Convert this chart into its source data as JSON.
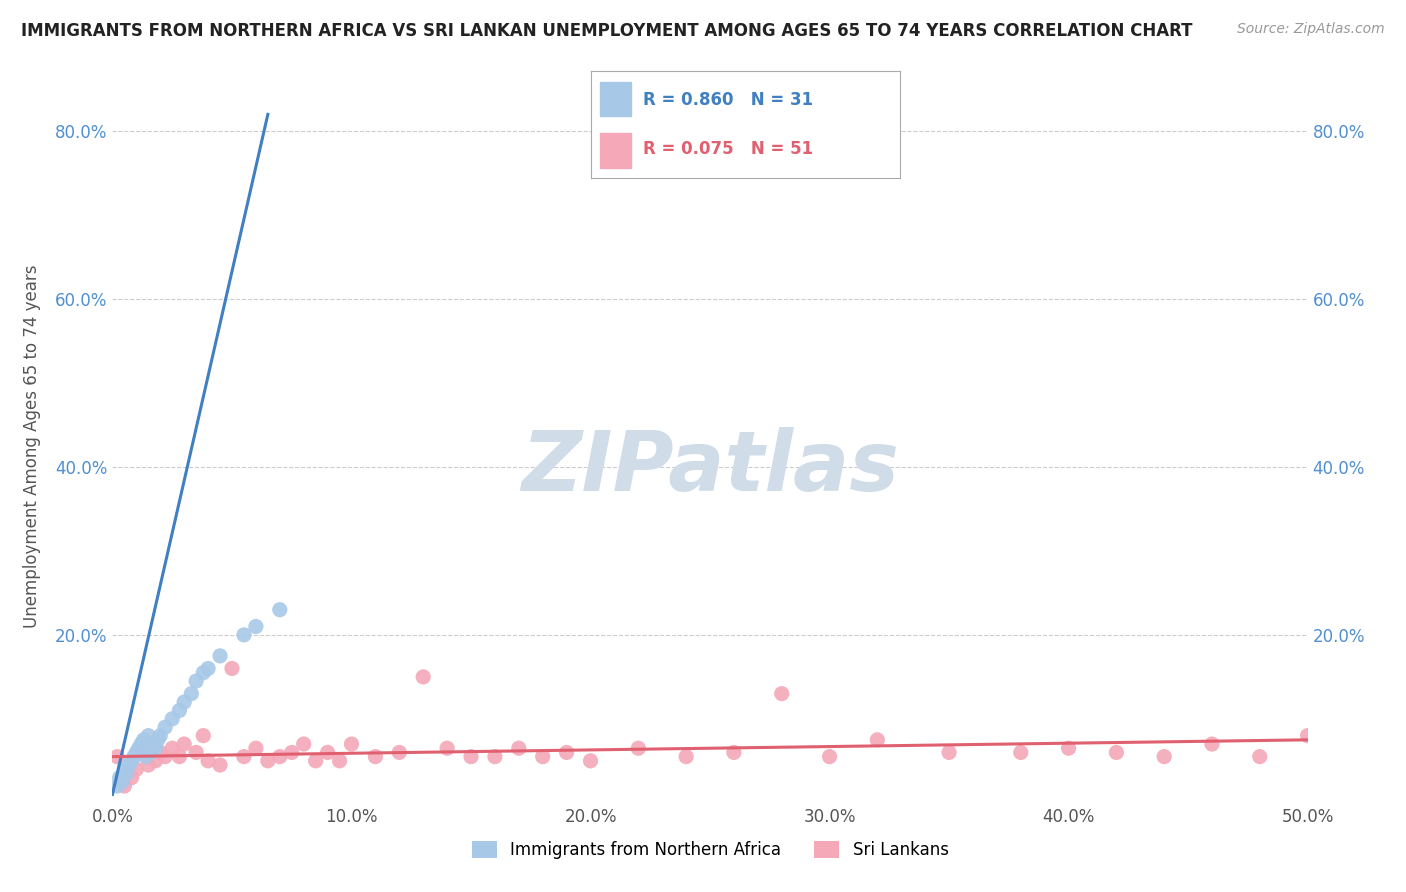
{
  "title": "IMMIGRANTS FROM NORTHERN AFRICA VS SRI LANKAN UNEMPLOYMENT AMONG AGES 65 TO 74 YEARS CORRELATION CHART",
  "source": "Source: ZipAtlas.com",
  "ylabel": "Unemployment Among Ages 65 to 74 years",
  "xlim": [
    0.0,
    0.5
  ],
  "ylim": [
    0.0,
    0.85
  ],
  "xtick_labels": [
    "0.0%",
    "10.0%",
    "20.0%",
    "30.0%",
    "40.0%",
    "50.0%"
  ],
  "xtick_values": [
    0.0,
    0.1,
    0.2,
    0.3,
    0.4,
    0.5
  ],
  "ytick_labels": [
    "20.0%",
    "40.0%",
    "60.0%",
    "80.0%"
  ],
  "ytick_values": [
    0.2,
    0.4,
    0.6,
    0.8
  ],
  "legend_labels": [
    "Immigrants from Northern Africa",
    "Sri Lankans"
  ],
  "R_blue": 0.86,
  "N_blue": 31,
  "R_pink": 0.075,
  "N_pink": 51,
  "blue_scatter_color": "#a8c8e8",
  "pink_scatter_color": "#f4a8b8",
  "blue_line_color": "#4080c0",
  "pink_line_color": "#e06070",
  "watermark_color": "#d0dce8",
  "blue_points_x": [
    0.002,
    0.003,
    0.004,
    0.005,
    0.006,
    0.007,
    0.008,
    0.009,
    0.01,
    0.011,
    0.012,
    0.013,
    0.014,
    0.015,
    0.016,
    0.017,
    0.018,
    0.019,
    0.02,
    0.022,
    0.025,
    0.028,
    0.03,
    0.033,
    0.035,
    0.038,
    0.04,
    0.045,
    0.055,
    0.06,
    0.07
  ],
  "blue_points_y": [
    0.02,
    0.03,
    0.025,
    0.04,
    0.035,
    0.045,
    0.05,
    0.055,
    0.06,
    0.065,
    0.07,
    0.075,
    0.055,
    0.08,
    0.06,
    0.07,
    0.065,
    0.075,
    0.08,
    0.09,
    0.1,
    0.11,
    0.12,
    0.13,
    0.145,
    0.155,
    0.16,
    0.175,
    0.2,
    0.21,
    0.23
  ],
  "pink_points_x": [
    0.002,
    0.005,
    0.008,
    0.01,
    0.012,
    0.015,
    0.018,
    0.02,
    0.022,
    0.025,
    0.028,
    0.03,
    0.035,
    0.038,
    0.04,
    0.045,
    0.05,
    0.055,
    0.06,
    0.065,
    0.07,
    0.075,
    0.08,
    0.085,
    0.09,
    0.095,
    0.1,
    0.11,
    0.12,
    0.13,
    0.14,
    0.15,
    0.16,
    0.17,
    0.18,
    0.19,
    0.2,
    0.22,
    0.24,
    0.26,
    0.28,
    0.3,
    0.32,
    0.35,
    0.38,
    0.4,
    0.42,
    0.44,
    0.46,
    0.48,
    0.5
  ],
  "pink_points_y": [
    0.055,
    0.02,
    0.03,
    0.04,
    0.06,
    0.045,
    0.05,
    0.06,
    0.055,
    0.065,
    0.055,
    0.07,
    0.06,
    0.08,
    0.05,
    0.045,
    0.16,
    0.055,
    0.065,
    0.05,
    0.055,
    0.06,
    0.07,
    0.05,
    0.06,
    0.05,
    0.07,
    0.055,
    0.06,
    0.15,
    0.065,
    0.055,
    0.055,
    0.065,
    0.055,
    0.06,
    0.05,
    0.065,
    0.055,
    0.06,
    0.13,
    0.055,
    0.075,
    0.06,
    0.06,
    0.065,
    0.06,
    0.055,
    0.07,
    0.055,
    0.08
  ],
  "blue_line_x": [
    0.0,
    0.065
  ],
  "blue_line_y": [
    0.01,
    0.82
  ],
  "pink_line_x": [
    0.0,
    0.5
  ],
  "pink_line_y": [
    0.055,
    0.075
  ]
}
